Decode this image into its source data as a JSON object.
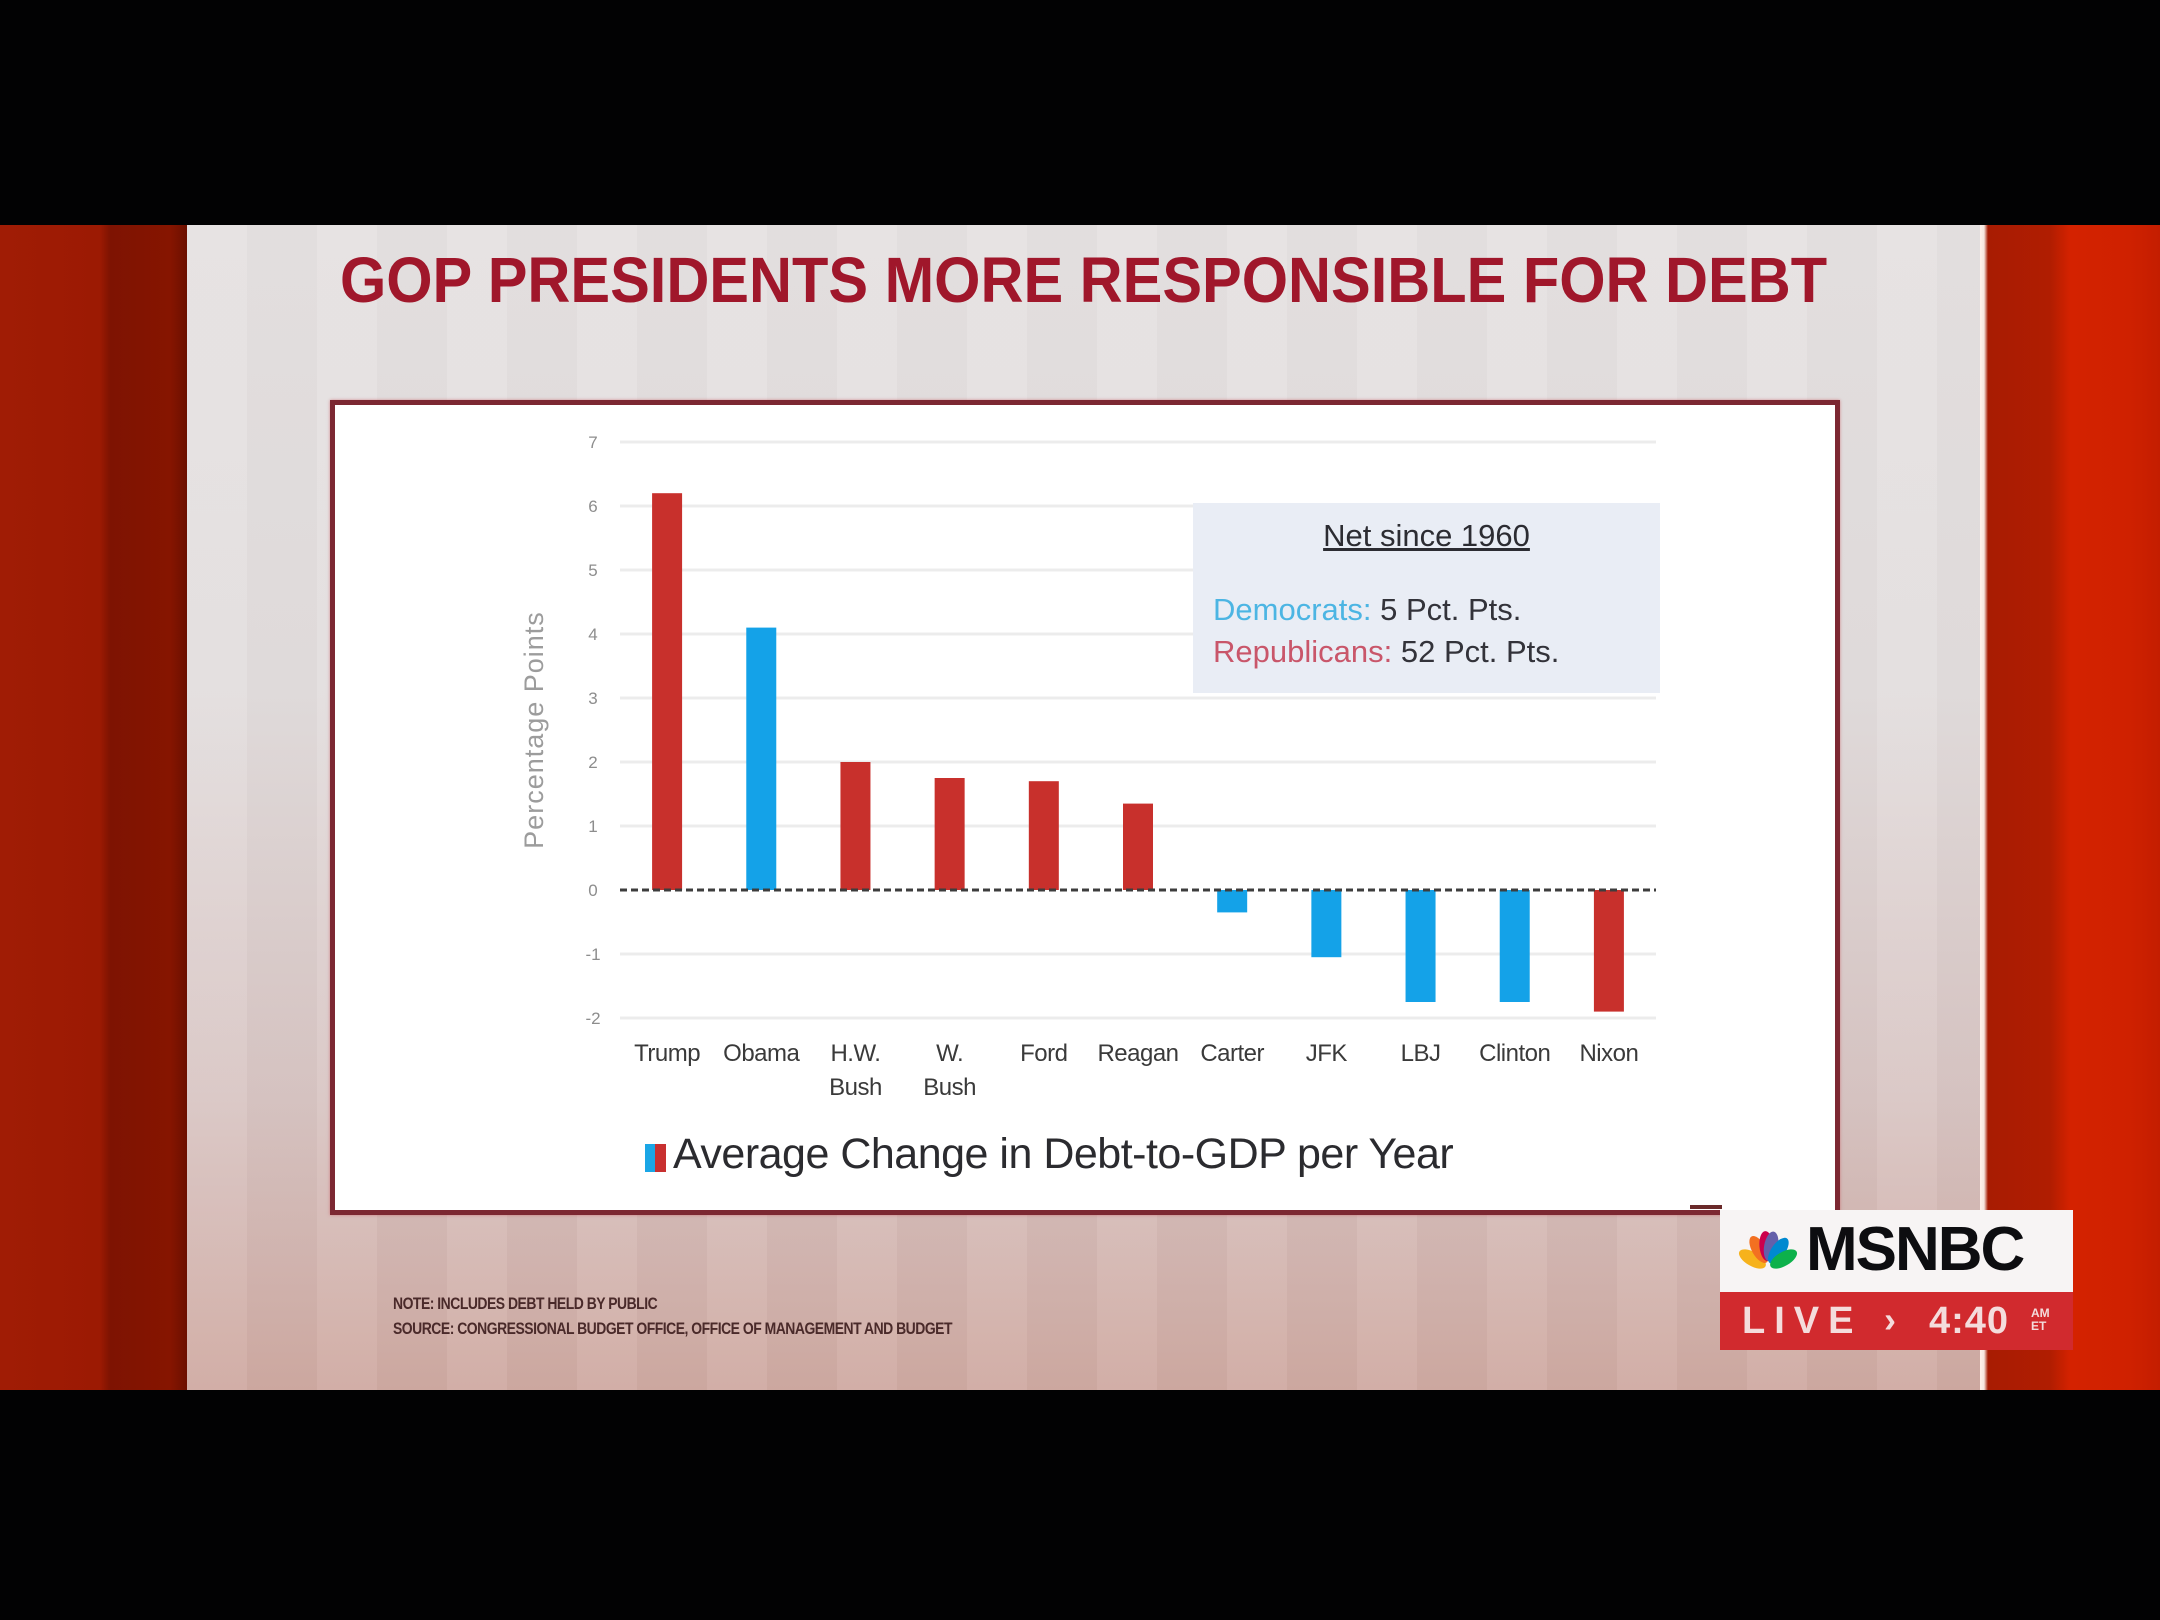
{
  "title": "GOP PRESIDENTS MORE RESPONSIBLE FOR DEBT",
  "colors": {
    "republican": "#c8302c",
    "democrat": "#14a2e8",
    "title": "#a0172b",
    "frame": "#7c2832",
    "gridline": "#ececec"
  },
  "chart_data": {
    "type": "bar",
    "title": "GOP PRESIDENTS MORE RESPONSIBLE FOR DEBT",
    "xlabel": "",
    "ylabel": "Percentage Points",
    "ylim": [
      -2,
      7
    ],
    "yticks": [
      7,
      6,
      5,
      4,
      3,
      2,
      1,
      0,
      -1,
      -2
    ],
    "ytick_labels": [
      "7",
      "6",
      "5",
      "4",
      "3",
      "2",
      "1",
      "0",
      "-1",
      "-2"
    ],
    "grid": true,
    "zero_line": "dashed",
    "categories": [
      {
        "label": [
          "Trump"
        ],
        "party": "republican"
      },
      {
        "label": [
          "Obama"
        ],
        "party": "democrat"
      },
      {
        "label": [
          "H.W.",
          "Bush"
        ],
        "party": "republican"
      },
      {
        "label": [
          "W.",
          "Bush"
        ],
        "party": "republican"
      },
      {
        "label": [
          "Ford"
        ],
        "party": "republican"
      },
      {
        "label": [
          "Reagan"
        ],
        "party": "republican"
      },
      {
        "label": [
          "Carter"
        ],
        "party": "democrat"
      },
      {
        "label": [
          "JFK"
        ],
        "party": "democrat"
      },
      {
        "label": [
          "LBJ"
        ],
        "party": "democrat"
      },
      {
        "label": [
          "Clinton"
        ],
        "party": "democrat"
      },
      {
        "label": [
          "Nixon"
        ],
        "party": "republican"
      }
    ],
    "series": [
      {
        "name": "Average Change in Debt-to-GDP per Year",
        "values": [
          6.2,
          4.1,
          2.0,
          1.75,
          1.7,
          1.35,
          -0.35,
          -1.05,
          -1.75,
          -1.75,
          -1.9
        ]
      }
    ],
    "legend": {
      "label": "Average Change in Debt-to-GDP per Year",
      "position": "bottom-center"
    },
    "annotation": {
      "title": "Net since 1960",
      "rows": [
        {
          "party": "Democrats:",
          "value": "5 Pct. Pts."
        },
        {
          "party": "Republicans:",
          "value": "52 Pct. Pts."
        }
      ],
      "position": "top-right"
    }
  },
  "footnote": {
    "note": "NOTE: INCLUDES DEBT HELD BY PUBLIC",
    "source": "SOURCE: CONGRESSIONAL BUDGET OFFICE, OFFICE OF MANAGEMENT AND BUDGET"
  },
  "network_bug": {
    "logo_text": "MSNBC",
    "live_label": "LIVE",
    "arrow": "›",
    "time": "4:40",
    "ampm": "AM",
    "timezone": "ET",
    "peacock_colors": [
      "#f6b21c",
      "#f37021",
      "#cc004c",
      "#6460aa",
      "#0089d0",
      "#0db14b"
    ]
  }
}
